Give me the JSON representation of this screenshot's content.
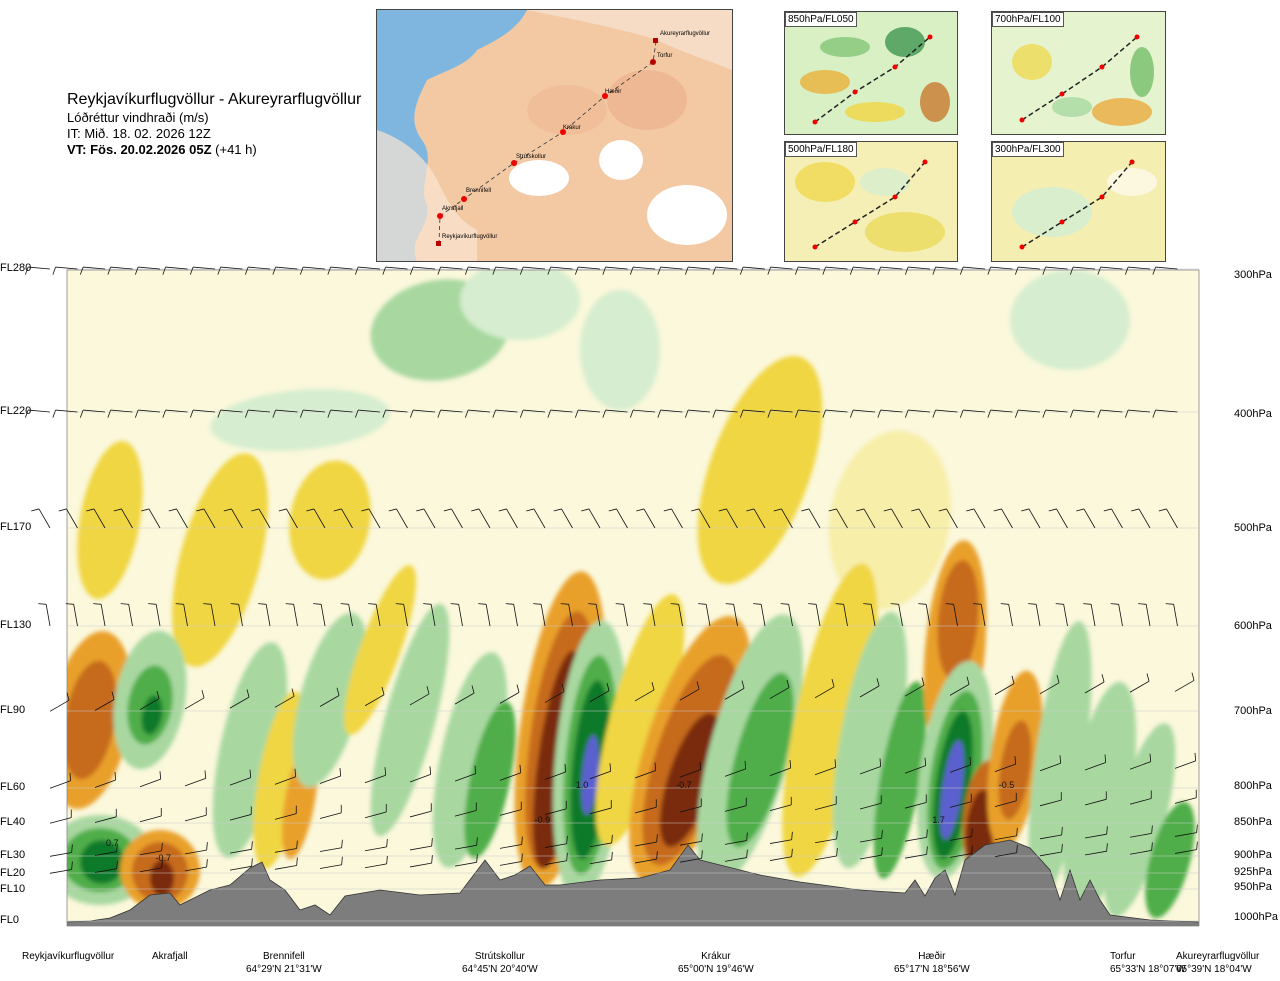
{
  "header": {
    "title": "Reykjavíkurflugvöllur - Akureyrarflugvöllur",
    "subtitle": "Lóðréttur vindhraði (m/s)",
    "issue_time": "IT: Mið. 18. 02. 2026 12Z",
    "valid_time": "VT: Fös. 20.02.2026 05Z",
    "lead_time": "(+41 h)"
  },
  "map": {
    "places": [
      "Akureyrarflugvöllur",
      "Torfur",
      "Hæðir",
      "Krákur",
      "Strútskollur",
      "Brennifell",
      "Akrafjall",
      "Reykjavíkurflugvöllur"
    ]
  },
  "panels": [
    {
      "label": "850hPa/FL050"
    },
    {
      "label": "700hPa/FL100"
    },
    {
      "label": "500hPa/FL180"
    },
    {
      "label": "300hPa/FL300"
    }
  ],
  "chart_data": {
    "type": "heatmap",
    "title": "Reykjavíkurflugvöllur - Akureyrarflugvöllur",
    "variable": "Lóðréttur vindhraði (m/s)",
    "left_axis": [
      "FL280",
      "FL220",
      "FL170",
      "FL130",
      "FL90",
      "FL60",
      "FL40",
      "FL30",
      "FL20",
      "FL10",
      "FL0"
    ],
    "right_axis": [
      "300hPa",
      "400hPa",
      "500hPa",
      "600hPa",
      "700hPa",
      "800hPa",
      "850hPa",
      "900hPa",
      "925hPa",
      "950hPa",
      "1000hPa"
    ],
    "waypoints": [
      {
        "name": "Reykjavíkurflugvöllur",
        "coord": ""
      },
      {
        "name": "Akrafjall",
        "coord": ""
      },
      {
        "name": "Brennifell",
        "coord": "64°29'N 21°31'W"
      },
      {
        "name": "Strútskollur",
        "coord": "64°45'N 20°40'W"
      },
      {
        "name": "Krákur",
        "coord": "65°00'N 19°46'W"
      },
      {
        "name": "Hæðir",
        "coord": "65°17'N 18°56'W"
      },
      {
        "name": "Torfur",
        "coord": "65°33'N 18°07'W"
      },
      {
        "name": "Akureyrarflugvöllur",
        "coord": "65°39'N 18°04'W"
      }
    ],
    "annotations": [
      {
        "text": "0.7",
        "along": 0.04,
        "fl": 33
      },
      {
        "text": "-0.7",
        "along": 0.085,
        "fl": 27
      },
      {
        "text": "-0.9",
        "along": 0.42,
        "fl": 40
      },
      {
        "text": "1.0",
        "along": 0.455,
        "fl": 60
      },
      {
        "text": "-0.7",
        "along": 0.545,
        "fl": 60
      },
      {
        "text": "1.7",
        "along": 0.77,
        "fl": 40
      },
      {
        "text": "-0.5",
        "along": 0.83,
        "fl": 60
      }
    ],
    "wind_levels": [
      "FL280",
      "FL220",
      "FL170",
      "FL130",
      "FL90",
      "FL60",
      "FL40",
      "FL30",
      "FL20"
    ],
    "colors": {
      "strong_down": "#7a2a0c",
      "down3": "#c66a1a",
      "down2": "#e9a02b",
      "down1": "#f0d642",
      "weak_down": "#f7eea9",
      "neutral": "#fbf8dc",
      "weak_up": "#d6edcf",
      "up1": "#a8d8a0",
      "up2": "#4fae4a",
      "up3": "#0b7a2b",
      "strong_up": "#5b61cf",
      "terrain": "#7d7d7d"
    }
  }
}
